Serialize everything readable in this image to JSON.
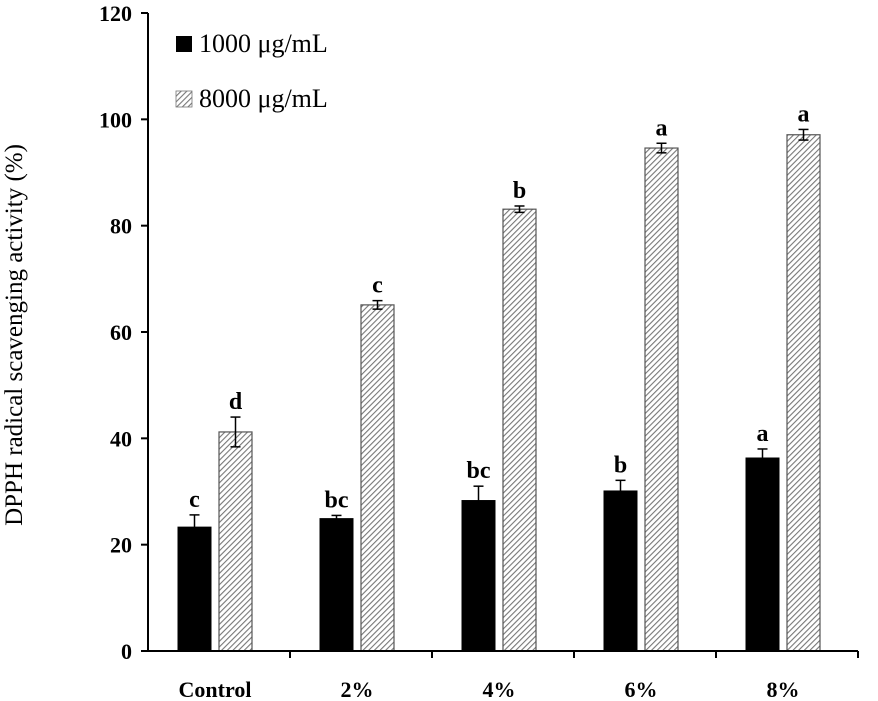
{
  "chart_data": {
    "type": "bar",
    "title": "",
    "xlabel": "",
    "ylabel": "DPPH radical scavenging activity (%)",
    "ylim": [
      0,
      120
    ],
    "yticks": [
      0,
      20,
      40,
      60,
      80,
      100,
      120
    ],
    "categories": [
      "Control",
      "2%",
      "4%",
      "6%",
      "8%"
    ],
    "legend_position": "top-left",
    "series": [
      {
        "name": "1000 μg/mL",
        "fill": "solid",
        "color": "#000000",
        "values": [
          23.3,
          24.9,
          28.3,
          30.1,
          36.3
        ],
        "errors": [
          2.3,
          0.6,
          2.7,
          2.0,
          1.7
        ],
        "letters": [
          "c",
          "bc",
          "bc",
          "b",
          "a"
        ]
      },
      {
        "name": "8000 μg/mL",
        "fill": "hatched",
        "color": "#888888",
        "values": [
          41.2,
          65.1,
          83.1,
          94.6,
          97.1
        ],
        "errors": [
          2.8,
          0.8,
          0.6,
          0.9,
          1.0
        ],
        "letters": [
          "d",
          "c",
          "b",
          "a",
          "a"
        ]
      }
    ]
  }
}
